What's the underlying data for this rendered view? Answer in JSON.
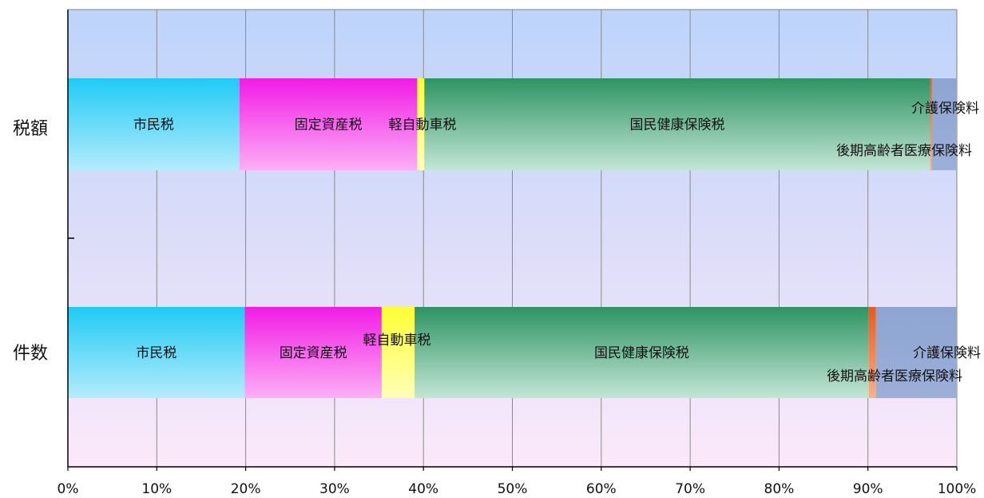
{
  "chart_data": {
    "type": "bar",
    "orientation": "horizontal",
    "stacked": true,
    "percent": true,
    "title": "",
    "xlabel": "",
    "ylabel": "",
    "xlim": [
      0,
      100
    ],
    "x_ticks": [
      "0%",
      "10%",
      "20%",
      "30%",
      "40%",
      "50%",
      "60%",
      "70%",
      "80%",
      "90%",
      "100%"
    ],
    "grid": "vertical",
    "categories": [
      "税額",
      "件数"
    ],
    "series": [
      {
        "name": "市民税",
        "values": [
          19.3,
          19.9
        ],
        "color_top": "#1ECBF5",
        "color_bottom": "#B5ECFC"
      },
      {
        "name": "固定資産税",
        "values": [
          20.0,
          15.4
        ],
        "color_top": "#F21BE6",
        "color_bottom": "#FCB0F6"
      },
      {
        "name": "軽自動車税",
        "values": [
          0.8,
          3.7
        ],
        "color_top": "#FFFF33",
        "color_bottom": "#FFFFB8"
      },
      {
        "name": "国民健康保険税",
        "values": [
          56.9,
          51.1
        ],
        "color_top": "#2E9463",
        "color_bottom": "#C3E6D5"
      },
      {
        "name": "介護保険料",
        "values": [
          0.2,
          0.8
        ],
        "color_top": "#E85A1C",
        "color_bottom": "#F8B089"
      },
      {
        "name": "後期高齢者医療保険料",
        "values": [
          2.8,
          9.1
        ],
        "color_top": "#8EA4D2",
        "color_bottom": "#9BB0D8"
      }
    ],
    "plot_background": [
      "#BDD4FB",
      "#DCDDF9",
      "#FCE9FA"
    ]
  }
}
